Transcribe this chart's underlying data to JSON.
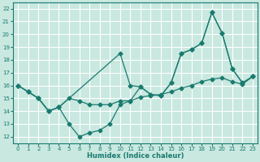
{
  "xlabel": "Humidex (Indice chaleur)",
  "bg_color": "#c8e8e0",
  "grid_color": "#ffffff",
  "line_color": "#1a7a6e",
  "xlim": [
    -0.5,
    23.5
  ],
  "ylim": [
    11.5,
    22.5
  ],
  "xticks": [
    0,
    1,
    2,
    3,
    4,
    5,
    6,
    7,
    8,
    9,
    10,
    11,
    12,
    13,
    14,
    15,
    16,
    17,
    18,
    19,
    20,
    21,
    22,
    23
  ],
  "yticks": [
    12,
    13,
    14,
    15,
    16,
    17,
    18,
    19,
    20,
    21,
    22
  ],
  "line1_x": [
    0,
    1,
    2,
    3,
    4,
    10,
    11,
    12,
    13,
    14,
    15,
    16,
    17,
    18,
    19,
    20,
    21,
    22,
    23
  ],
  "line1_y": [
    16.0,
    15.5,
    15.0,
    14.0,
    14.3,
    18.5,
    16.0,
    15.9,
    15.3,
    15.2,
    16.2,
    18.5,
    18.8,
    19.3,
    21.7,
    20.1,
    17.3,
    16.2,
    16.7
  ],
  "line2_x": [
    0,
    1,
    2,
    3,
    4,
    5,
    6,
    7,
    8,
    9,
    10,
    11,
    12,
    13,
    14,
    15,
    16,
    17,
    18,
    19,
    20,
    21,
    22,
    23
  ],
  "line2_y": [
    16.0,
    15.5,
    15.0,
    14.0,
    14.3,
    15.0,
    14.8,
    14.5,
    14.5,
    14.5,
    14.8,
    14.8,
    15.1,
    15.2,
    15.3,
    15.5,
    15.8,
    16.0,
    16.3,
    16.5,
    16.6,
    16.3,
    16.1,
    16.7
  ],
  "line3_x": [
    0,
    1,
    2,
    3,
    4,
    5,
    6,
    7,
    8,
    9,
    10,
    11,
    12,
    13,
    14,
    15,
    16,
    17,
    18,
    19,
    20,
    21,
    22,
    23
  ],
  "line3_y": [
    16.0,
    15.5,
    15.0,
    14.0,
    14.3,
    13.0,
    12.0,
    12.3,
    12.5,
    13.0,
    14.5,
    14.8,
    15.9,
    15.3,
    15.2,
    16.2,
    18.5,
    18.8,
    19.3,
    21.7,
    20.1,
    17.3,
    16.2,
    16.7
  ]
}
